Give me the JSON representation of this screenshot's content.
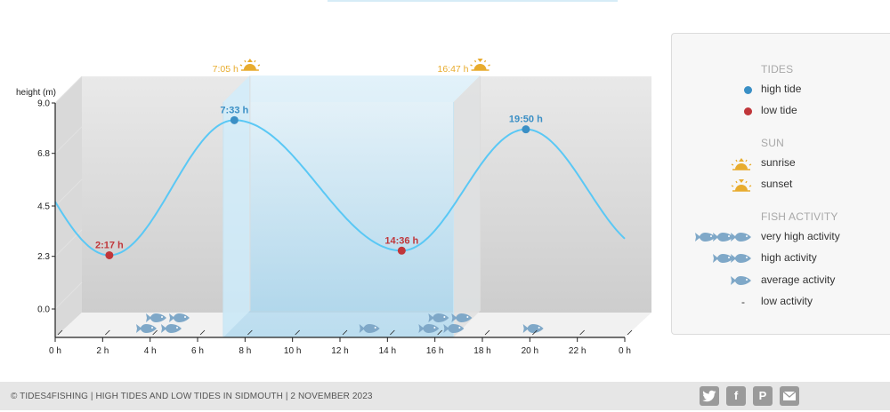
{
  "chart_data": {
    "type": "line",
    "title": "",
    "ylabel": "height (m)",
    "xlabel": "",
    "xlim": [
      0,
      24
    ],
    "ylim": [
      -1.1,
      9.0
    ],
    "yticks": [
      "9.0",
      "6.8",
      "4.5",
      "2.3",
      "0.0"
    ],
    "xticks": [
      "0 h",
      "2 h",
      "4 h",
      "6 h",
      "8 h",
      "10 h",
      "12 h",
      "14 h",
      "16 h",
      "18 h",
      "20 h",
      "22 h",
      "0 h"
    ],
    "tide_events": [
      {
        "type": "low",
        "label": "2:17 h",
        "hour": 2.283,
        "height": 2.0
      },
      {
        "type": "high",
        "label": "7:33 h",
        "hour": 7.55,
        "height": 7.9
      },
      {
        "type": "low",
        "label": "14:36 h",
        "hour": 14.6,
        "height": 2.2
      },
      {
        "type": "high",
        "label": "19:50 h",
        "hour": 19.833,
        "height": 7.5
      }
    ],
    "sun": {
      "sunrise_label": "7:05 h",
      "sunrise_hour": 7.083,
      "sunset_label": "16:47 h",
      "sunset_hour": 16.783
    },
    "fish_activity": [
      {
        "hour": 4.2,
        "level": 4
      },
      {
        "hour": 12.7,
        "level": 1
      },
      {
        "hour": 16.1,
        "level": 4
      },
      {
        "hour": 19.6,
        "level": 1
      }
    ],
    "colors": {
      "tide_line": "#5ac8f5",
      "high_tide": "#3a8fc5",
      "low_tide": "#c0363a",
      "sun": "#e8ac2e",
      "fish": "#7fa8c8",
      "daylight": "#b8def2"
    }
  },
  "legend": {
    "tides_title": "TIDES",
    "high_tide": "high tide",
    "low_tide": "low tide",
    "sun_title": "SUN",
    "sunrise": "sunrise",
    "sunset": "sunset",
    "fish_title": "FISH ACTIVITY",
    "very_high": "very high activity",
    "high": "high activity",
    "average": "average activity",
    "low": "low activity",
    "low_symbol": "-"
  },
  "footer": {
    "text": "© TIDES4FISHING | HIGH TIDES AND LOW TIDES IN SIDMOUTH | 2 NOVEMBER 2023",
    "social": [
      "twitter-icon",
      "facebook-icon",
      "pinterest-icon",
      "email-icon"
    ]
  }
}
